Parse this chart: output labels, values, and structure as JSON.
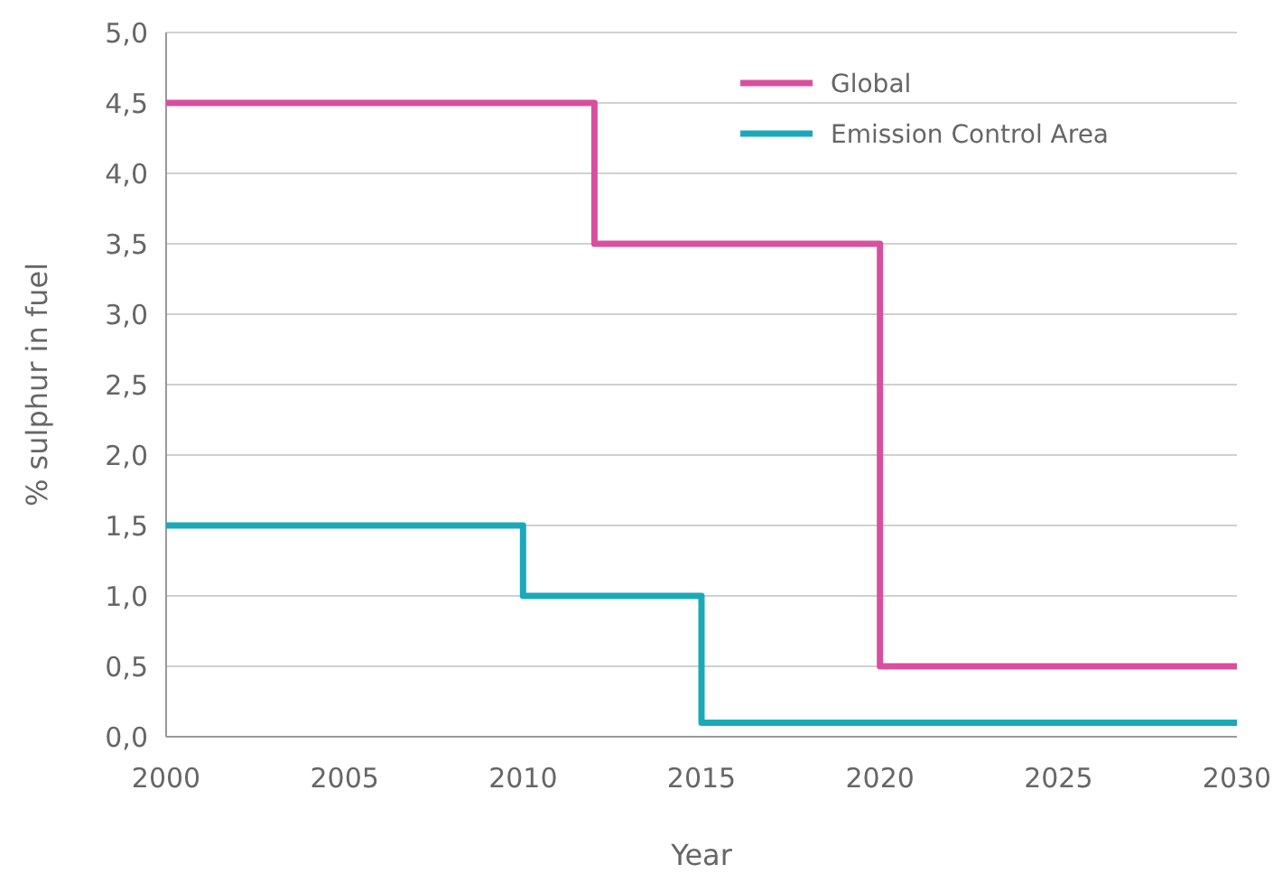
{
  "chart_data": {
    "type": "step",
    "xlabel": "Year",
    "ylabel": "% sulphur in fuel",
    "xlim": [
      2000,
      2030
    ],
    "xticks": [
      2000,
      2005,
      2010,
      2015,
      2020,
      2025,
      2030
    ],
    "ylim": [
      0,
      5
    ],
    "yticks": [
      {
        "value": 0,
        "label": "0,0"
      },
      {
        "value": 0.5,
        "label": "0,5"
      },
      {
        "value": 1,
        "label": "1,0"
      },
      {
        "value": 1.5,
        "label": "1,5"
      },
      {
        "value": 2,
        "label": "2,0"
      },
      {
        "value": 2.5,
        "label": "2,5"
      },
      {
        "value": 3,
        "label": "3,0"
      },
      {
        "value": 3.5,
        "label": "3,5"
      },
      {
        "value": 4,
        "label": "4,0"
      },
      {
        "value": 4.5,
        "label": "4,5"
      },
      {
        "value": 5,
        "label": "5,0"
      }
    ],
    "grid": "y",
    "legend": "top right",
    "series": [
      {
        "name": "Global",
        "color": "#d94f9f",
        "x": [
          2000,
          2012,
          2020,
          2030
        ],
        "values": [
          4.5,
          3.5,
          0.5,
          0.5
        ]
      },
      {
        "name": "Emission Control Area",
        "color": "#1ba9b9",
        "x": [
          2000,
          2010,
          2015,
          2030
        ],
        "values": [
          1.5,
          1.0,
          0.1,
          0.1
        ]
      }
    ]
  }
}
